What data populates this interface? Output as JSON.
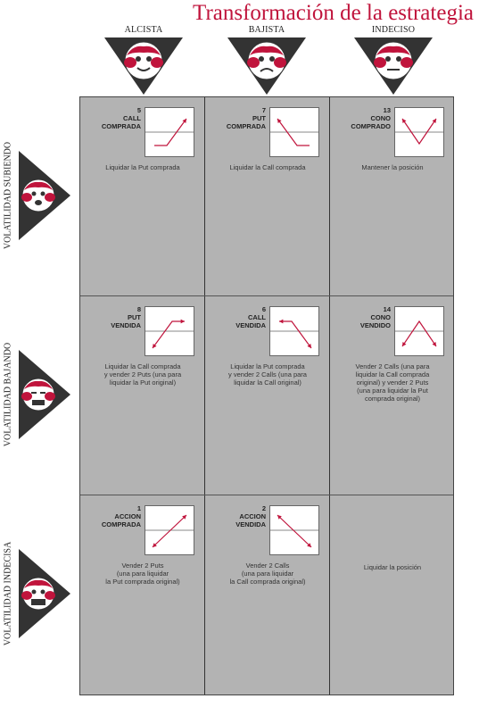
{
  "title": "Transformación de la estrategia",
  "columns": [
    {
      "label": "ALCISTA",
      "icon": "bullish-face-icon"
    },
    {
      "label": "BAJISTA",
      "icon": "bearish-face-icon"
    },
    {
      "label": "INDECISO",
      "icon": "undecided-face-icon"
    }
  ],
  "rows": [
    {
      "label": "VOLATILIDAD SUBIENDO",
      "icon": "rising-volatility-face-icon"
    },
    {
      "label": "VOLATILIDAD BAJANDO",
      "icon": "falling-volatility-face-icon"
    },
    {
      "label": "VOLATILIDAD INDECISA",
      "icon": "undecided-volatility-face-icon"
    }
  ],
  "cells": [
    [
      {
        "num": "5",
        "name": "CALL\nCOMPRADA",
        "desc": "Liquidar la Put comprada",
        "payoff": "long-call"
      },
      {
        "num": "7",
        "name": "PUT\nCOMPRADA",
        "desc": "Liquidar la Call comprada",
        "payoff": "long-put"
      },
      {
        "num": "13",
        "name": "CONO\nCOMPRADO",
        "desc": "Mantener la posición",
        "payoff": "long-straddle"
      }
    ],
    [
      {
        "num": "8",
        "name": "PUT\nVENDIDA",
        "desc": "Liquidar la Call comprada\ny vender 2 Puts (una para\nliquidar la Put original)",
        "payoff": "short-put"
      },
      {
        "num": "6",
        "name": "CALL\nVENDIDA",
        "desc": "Liquidar la Put comprada\ny vender 2 Calls (una para\nliquidar la Call original)",
        "payoff": "short-call"
      },
      {
        "num": "14",
        "name": "CONO\nVENDIDO",
        "desc": "Vender 2 Calls (una para\nliquidar la Call comprada\noriginal) y vender 2 Puts\n(una para liquidar la Put\ncomprada original)",
        "payoff": "short-straddle"
      }
    ],
    [
      {
        "num": "1",
        "name": "ACCION\nCOMPRADA",
        "desc": "Vender 2 Puts\n(una para liquidar\nla Put comprada original)",
        "payoff": "long-stock"
      },
      {
        "num": "2",
        "name": "ACCION\nVENDIDA",
        "desc": "Vender 2 Calls\n(una para liquidar\nla Call comprada original)",
        "payoff": "short-stock"
      },
      {
        "num": "",
        "name": "",
        "desc": "Liquidar la posición",
        "payoff": "none"
      }
    ]
  ],
  "colors": {
    "accent": "#c0143c",
    "grid_bg": "#b3b3b3",
    "line": "#c0143c"
  }
}
